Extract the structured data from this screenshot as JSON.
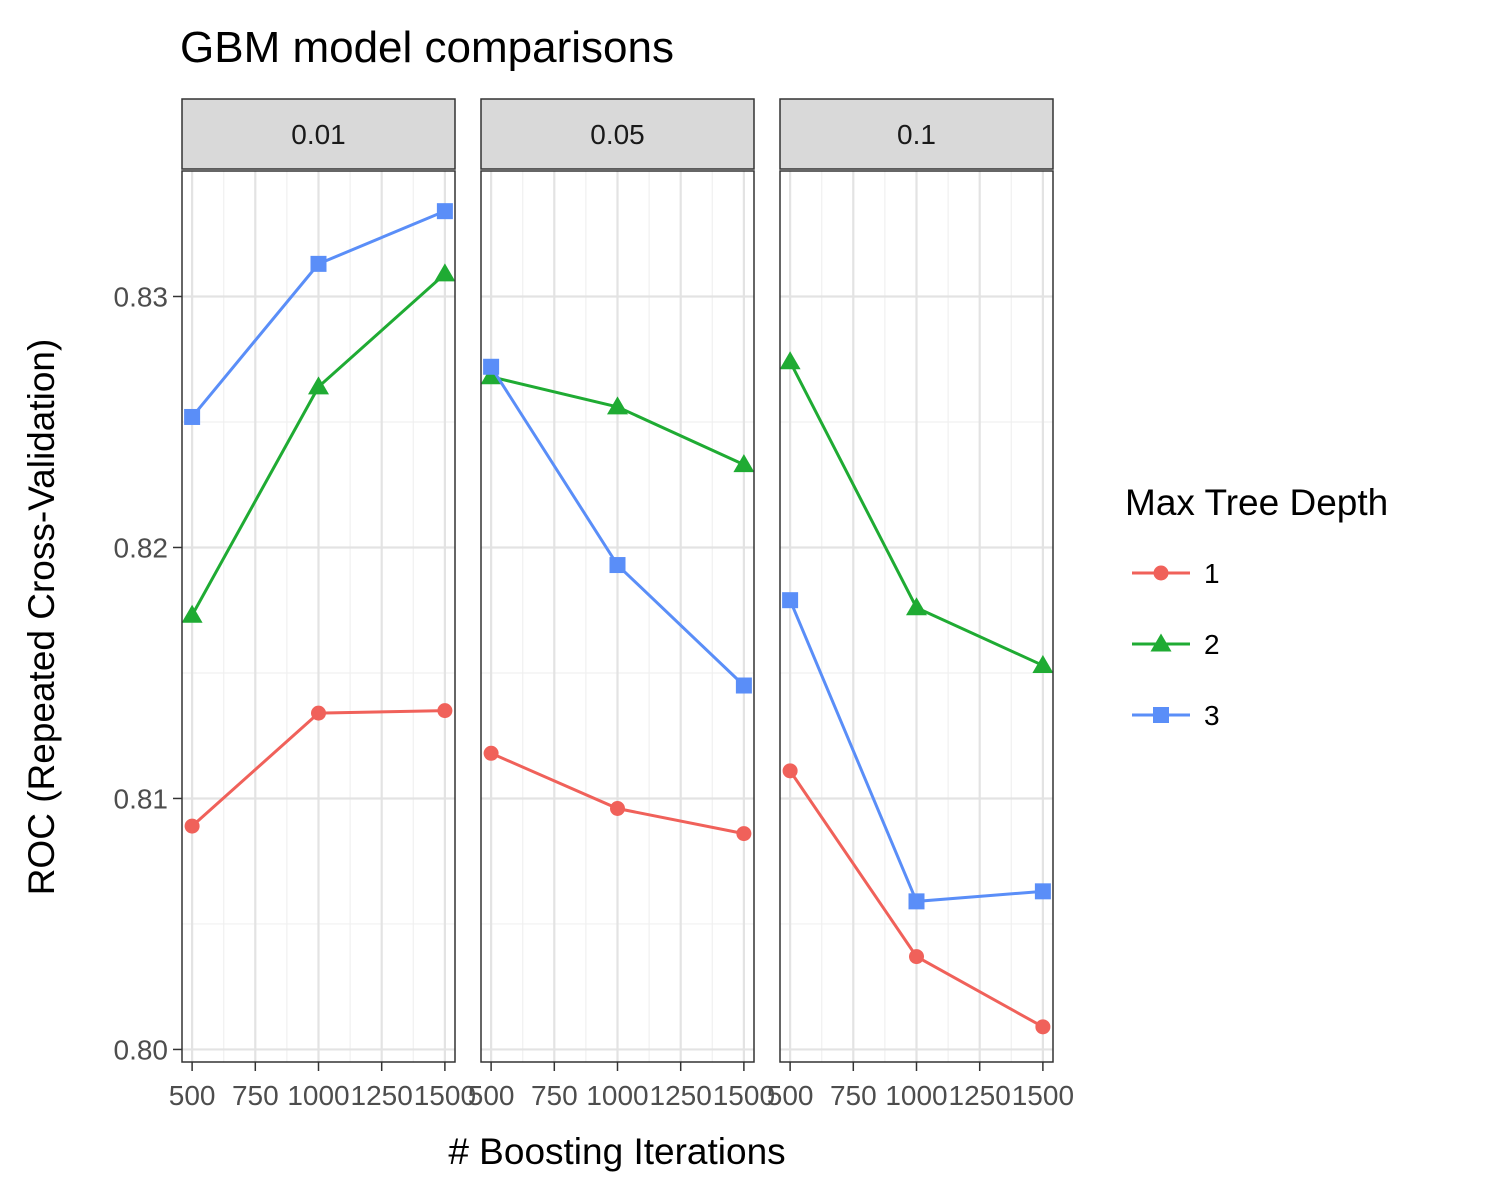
{
  "chart_data": {
    "type": "line",
    "title": "GBM model comparisons",
    "xlabel": "# Boosting Iterations",
    "ylabel": "ROC (Repeated Cross-Validation)",
    "x": [
      500,
      1000,
      1500
    ],
    "xlim": [
      460,
      1540
    ],
    "xticks": [
      500,
      750,
      1000,
      1250,
      1500
    ],
    "xtick_labels": [
      "500",
      "750",
      "1000",
      "1250",
      "1500"
    ],
    "ylim": [
      0.7995,
      0.835
    ],
    "yticks": [
      0.8,
      0.81,
      0.82,
      0.83
    ],
    "ytick_labels": [
      "0.80",
      "0.81",
      "0.82",
      "0.83"
    ],
    "grid": true,
    "legend": {
      "title": "Max Tree Depth",
      "position": "right"
    },
    "panels": [
      {
        "label": "0.01",
        "series": [
          {
            "name": "1",
            "color": "#f0615a",
            "marker": "circle",
            "values": [
              0.8089,
              0.8134,
              0.8135
            ]
          },
          {
            "name": "2",
            "color": "#1fab33",
            "marker": "triangle",
            "values": [
              0.8173,
              0.8264,
              0.8309
            ]
          },
          {
            "name": "3",
            "color": "#5a8ef8",
            "marker": "square",
            "values": [
              0.8252,
              0.8313,
              0.8334
            ]
          }
        ]
      },
      {
        "label": "0.05",
        "series": [
          {
            "name": "1",
            "color": "#f0615a",
            "marker": "circle",
            "values": [
              0.8118,
              0.8096,
              0.8086
            ]
          },
          {
            "name": "2",
            "color": "#1fab33",
            "marker": "triangle",
            "values": [
              0.8268,
              0.8256,
              0.8233
            ]
          },
          {
            "name": "3",
            "color": "#5a8ef8",
            "marker": "square",
            "values": [
              0.8272,
              0.8193,
              0.8145
            ]
          }
        ]
      },
      {
        "label": "0.1",
        "series": [
          {
            "name": "1",
            "color": "#f0615a",
            "marker": "circle",
            "values": [
              0.8111,
              0.8037,
              0.8009
            ]
          },
          {
            "name": "2",
            "color": "#1fab33",
            "marker": "triangle",
            "values": [
              0.8274,
              0.8176,
              0.8153
            ]
          },
          {
            "name": "3",
            "color": "#5a8ef8",
            "marker": "square",
            "values": [
              0.8179,
              0.8059,
              0.8063
            ]
          }
        ]
      }
    ]
  }
}
